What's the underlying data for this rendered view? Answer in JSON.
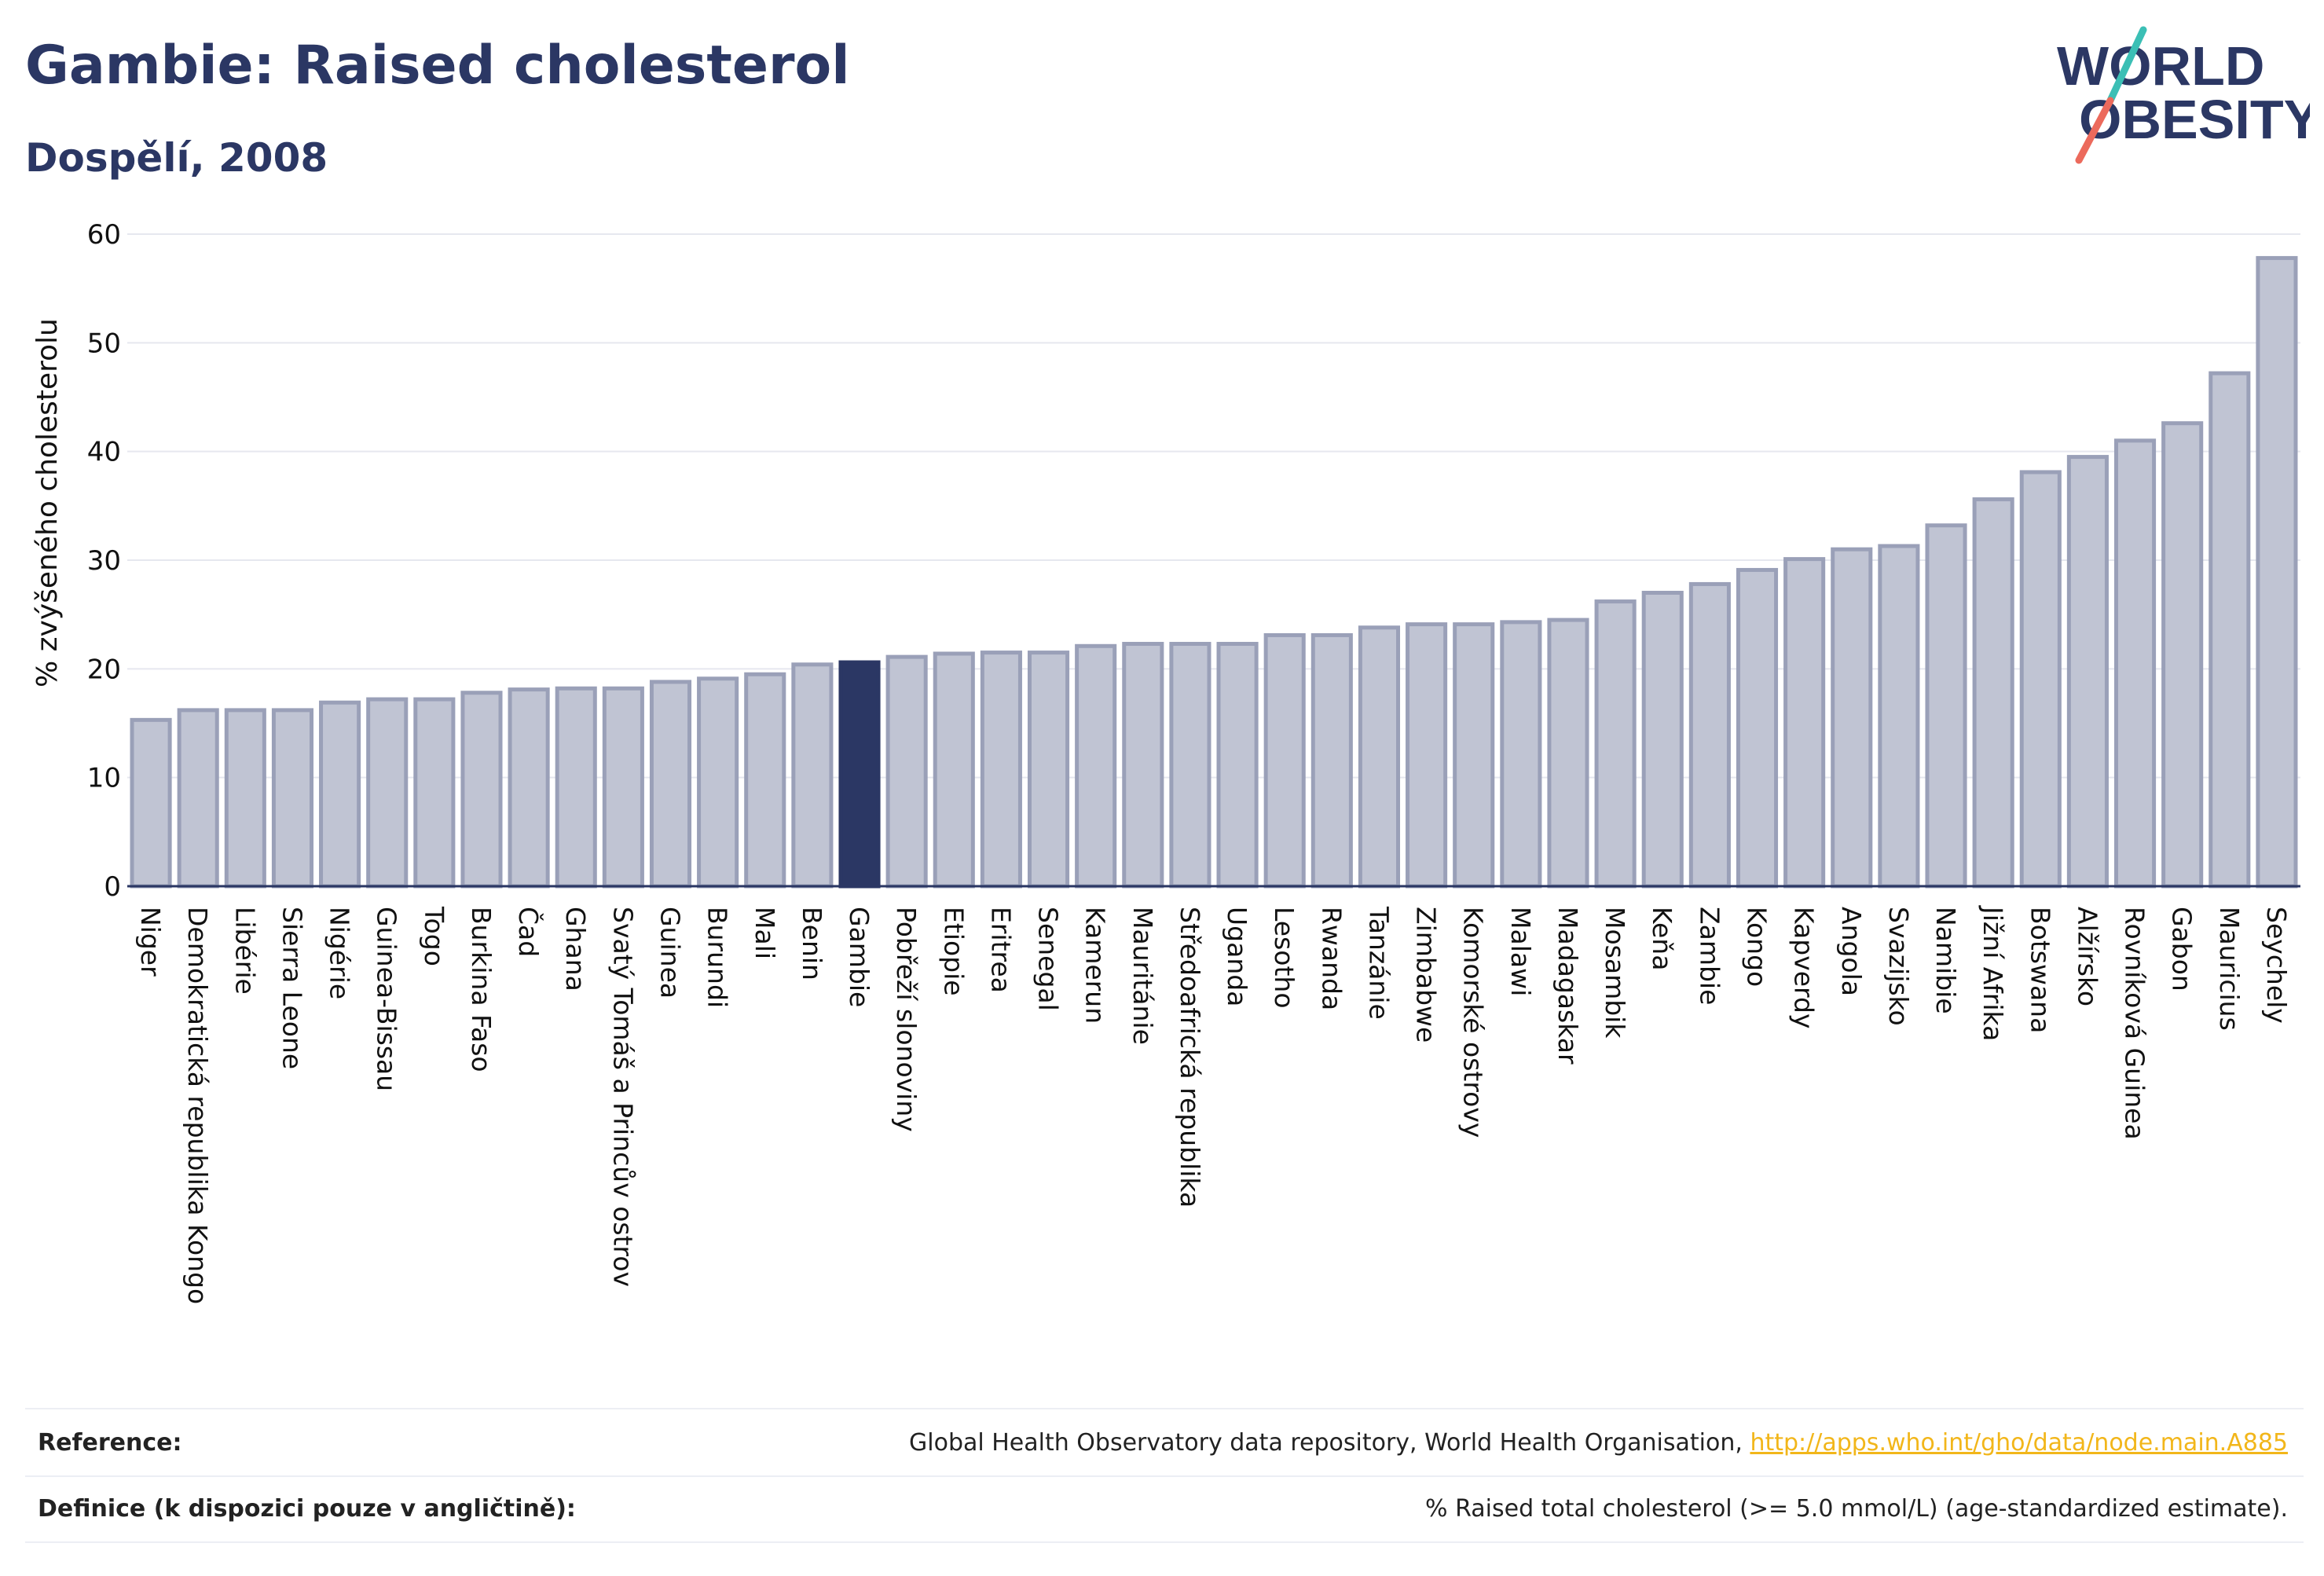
{
  "header": {
    "title": "Gambie: Raised cholesterol",
    "subtitle": "Dospělí, 2008"
  },
  "logo": {
    "line1": "WORLD",
    "line2": "OBESITY",
    "colors": {
      "text": "#2b3764",
      "slash_teal": "#3bbfb5",
      "slash_coral": "#ec6a5c"
    }
  },
  "chart_data": {
    "type": "bar",
    "ylabel": "% zvýšeného cholesterolu",
    "xlabel": "",
    "ylim": [
      0,
      60
    ],
    "yticks": [
      0,
      10,
      20,
      30,
      40,
      50,
      60
    ],
    "grid": true,
    "highlight": "Gambie",
    "colors": {
      "bar": "#c0c4d3",
      "bar_border": "#9aa0b8",
      "highlight": "#2b3764",
      "grid": "#e6e8ef"
    },
    "categories": [
      "Niger",
      "Demokratická republika Kongo",
      "Libérie",
      "Sierra Leone",
      "Nigérie",
      "Guinea-Bissau",
      "Togo",
      "Burkina Faso",
      "Čad",
      "Ghana",
      "Svatý Tomáš a Princův ostrov",
      "Guinea",
      "Burundi",
      "Mali",
      "Benin",
      "Gambie",
      "Pobřeží slonoviny",
      "Etiopie",
      "Eritrea",
      "Senegal",
      "Kamerun",
      "Mauritánie",
      "Středoafrická republika",
      "Uganda",
      "Lesotho",
      "Rwanda",
      "Tanzánie",
      "Zimbabwe",
      "Komorské ostrovy",
      "Malawi",
      "Madagaskar",
      "Mosambik",
      "Keňa",
      "Zambie",
      "Kongo",
      "Kapverdy",
      "Angola",
      "Svazijsko",
      "Namibie",
      "Jižní Afrika",
      "Botswana",
      "Alžírsko",
      "Rovníková Guinea",
      "Gabon",
      "Mauricius",
      "Seychely"
    ],
    "values": [
      15.3,
      16.2,
      16.2,
      16.2,
      16.9,
      17.2,
      17.2,
      17.8,
      18.1,
      18.2,
      18.2,
      18.8,
      19.1,
      19.5,
      20.4,
      20.6,
      21.1,
      21.4,
      21.5,
      21.5,
      22.1,
      22.3,
      22.3,
      22.3,
      23.1,
      23.1,
      23.8,
      24.1,
      24.1,
      24.3,
      24.5,
      26.2,
      27.0,
      27.8,
      29.1,
      30.1,
      31.0,
      31.3,
      33.2,
      35.6,
      38.1,
      39.5,
      41.0,
      42.6,
      47.2,
      57.8
    ]
  },
  "footer": {
    "reference_label": "Reference:",
    "reference_text": "Global Health Observatory data repository, World Health Organisation, ",
    "reference_link": "http://apps.who.int/gho/data/node.main.A885",
    "definition_label": "Definice (k dispozici pouze v angličtině):",
    "definition_text": "% Raised total cholesterol (>= 5.0 mmol/L) (age-standardized estimate)."
  }
}
